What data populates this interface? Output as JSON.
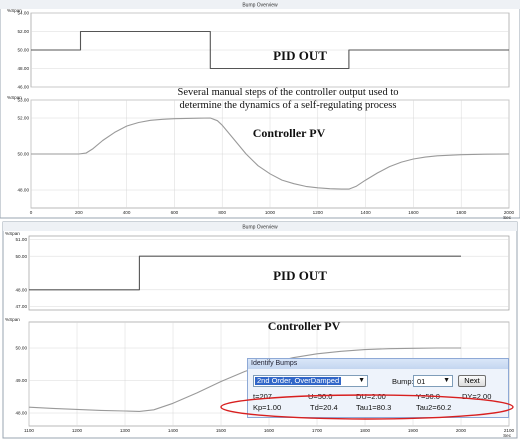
{
  "panels": {
    "top": {
      "title": "Bump Overview"
    },
    "bottom": {
      "title": "Bump Overview"
    }
  },
  "annotations": {
    "top_pid_label": "PID OUT",
    "top_pv_label": "Controller PV",
    "caption_line1": "Several manual steps of the controller output used to",
    "caption_line2": "determine the dynamics of a self-regulating process",
    "bottom_pid_label": "PID OUT",
    "bottom_pv_label": "Controller PV"
  },
  "dialog": {
    "title": "Identify Bumps",
    "model_value": "2nd Order, OverDamped",
    "bump_label": "Bump:",
    "bump_value": "01",
    "next_label": "Next",
    "row1": [
      "t=207",
      "U=50.0",
      "DU=2.00",
      "Y=50.0",
      "DY=2.00"
    ],
    "row2": [
      "Kp=1.00",
      "Td=20.4",
      "Tau1=80.3",
      "Tau2=60.2"
    ]
  },
  "colors": {
    "pid_line": "#555555",
    "pv_line": "#9a9a9a",
    "highlight_ellipse": "#d81f1f",
    "grid": "#d8d8d8"
  },
  "chart_data": [
    {
      "type": "line",
      "title": "",
      "ylabel": "%Span",
      "xlabel": "",
      "x_unit": "",
      "xlim": [
        0,
        2000
      ],
      "ylim": [
        46,
        54
      ],
      "yticks": [
        "54.00",
        "52.00",
        "50.00",
        "48.00",
        "46.00"
      ],
      "xticks": [],
      "grid": true,
      "series": [
        {
          "name": "PID OUT",
          "x": [
            0,
            207,
            207,
            750,
            750,
            1330,
            1330,
            2000
          ],
          "y": [
            50,
            50,
            52,
            52,
            48,
            48,
            50,
            50
          ]
        }
      ]
    },
    {
      "type": "line",
      "title": "",
      "ylabel": "%Span",
      "xlabel": "",
      "x_unit": "Sec",
      "xlim": [
        0,
        2000
      ],
      "ylim": [
        47,
        53
      ],
      "yticks": [
        "53.00",
        "52.00",
        "50.00",
        "48.00"
      ],
      "xticks": [
        "0",
        "200",
        "400",
        "600",
        "800",
        "1000",
        "1200",
        "1400",
        "1600",
        "1800",
        "2000"
      ],
      "grid": true,
      "series": [
        {
          "name": "Controller PV",
          "x": [
            0,
            200,
            230,
            260,
            300,
            350,
            400,
            450,
            500,
            550,
            600,
            650,
            700,
            750,
            780,
            800,
            850,
            900,
            950,
            1000,
            1050,
            1100,
            1150,
            1200,
            1250,
            1300,
            1330,
            1360,
            1400,
            1450,
            1500,
            1550,
            1600,
            1650,
            1700,
            1800,
            1900,
            2000
          ],
          "y": [
            50,
            50,
            50.05,
            50.3,
            50.75,
            51.2,
            51.55,
            51.75,
            51.87,
            51.93,
            51.96,
            51.98,
            51.99,
            52,
            51.85,
            51.6,
            50.8,
            50,
            49.35,
            48.9,
            48.55,
            48.35,
            48.2,
            48.12,
            48.07,
            48.05,
            48.05,
            48.2,
            48.55,
            48.95,
            49.3,
            49.55,
            49.72,
            49.83,
            49.9,
            49.96,
            49.99,
            50
          ]
        }
      ]
    },
    {
      "type": "line",
      "title": "",
      "ylabel": "%Span",
      "xlabel": "",
      "x_unit": "",
      "xlim": [
        1100,
        2100
      ],
      "ylim": [
        46.8,
        51.2
      ],
      "yticks": [
        "51.00",
        "50.00",
        "48.00",
        "47.00"
      ],
      "xticks": [],
      "grid": true,
      "series": [
        {
          "name": "PID OUT",
          "x": [
            1100,
            1330,
            1330,
            2000
          ],
          "y": [
            48,
            48,
            50,
            50
          ]
        }
      ]
    },
    {
      "type": "line",
      "title": "",
      "ylabel": "%Span",
      "xlabel": "",
      "x_unit": "Sec",
      "xlim": [
        1100,
        2100
      ],
      "ylim": [
        47.6,
        50.8
      ],
      "yticks": [
        "50.00",
        "49.00",
        "48.00",
        "47.00"
      ],
      "xticks": [
        "1100",
        "1200",
        "1300",
        "1400",
        "1500",
        "1600",
        "1700",
        "1800",
        "1900",
        "2000",
        "2100"
      ],
      "grid": true,
      "series": [
        {
          "name": "Controller PV",
          "x": [
            1100,
            1150,
            1200,
            1250,
            1300,
            1330,
            1360,
            1400,
            1450,
            1500,
            1550,
            1600,
            1650,
            1700,
            1750,
            1800,
            1850,
            1900,
            1950,
            2000
          ],
          "y": [
            48.18,
            48.14,
            48.11,
            48.08,
            48.06,
            48.05,
            48.1,
            48.3,
            48.62,
            48.97,
            49.28,
            49.52,
            49.7,
            49.82,
            49.9,
            49.95,
            49.98,
            49.99,
            50,
            50
          ]
        }
      ]
    }
  ]
}
